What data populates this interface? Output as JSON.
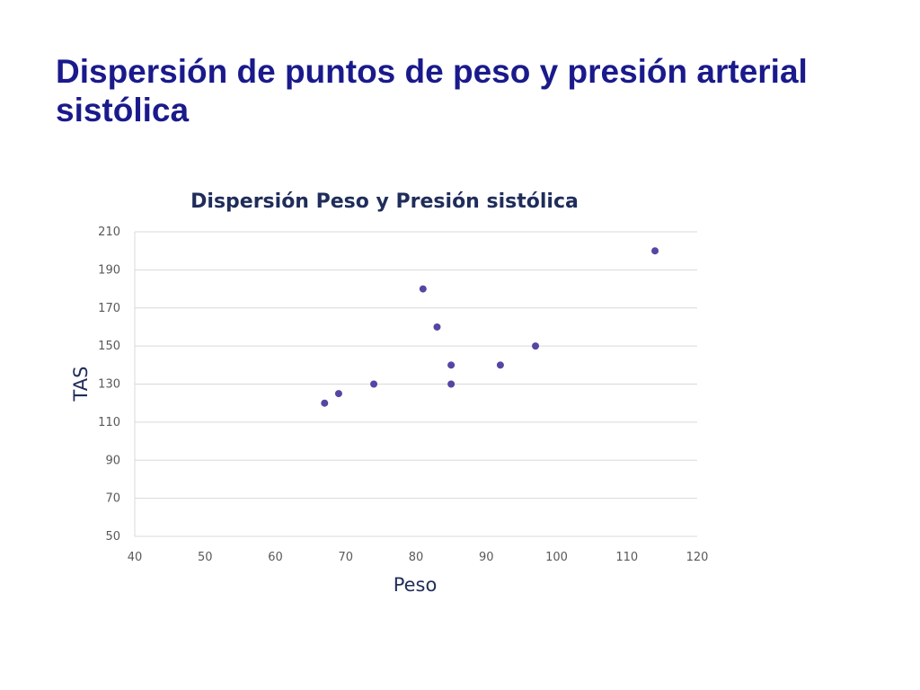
{
  "slide": {
    "title": "Dispersión de puntos de peso y presión arterial sistólica"
  },
  "chart_data": {
    "type": "scatter",
    "title": "Dispersión Peso y Presión sistólica",
    "xlabel": "Peso",
    "ylabel": "TAS",
    "xlim": [
      40,
      120
    ],
    "ylim": [
      50,
      210
    ],
    "xticks": [
      40,
      50,
      60,
      70,
      80,
      90,
      100,
      110,
      120
    ],
    "yticks": [
      50,
      70,
      90,
      110,
      130,
      150,
      170,
      190,
      210
    ],
    "grid": "horizontal",
    "legend": "none",
    "marker_color": "#5646a3",
    "gridline_color": "#d9d9d9",
    "series": [
      {
        "x": [
          67,
          69,
          74,
          81,
          83,
          85,
          85,
          92,
          97,
          114
        ],
        "y": [
          120,
          125,
          130,
          180,
          160,
          140,
          130,
          140,
          150,
          200
        ]
      }
    ]
  }
}
